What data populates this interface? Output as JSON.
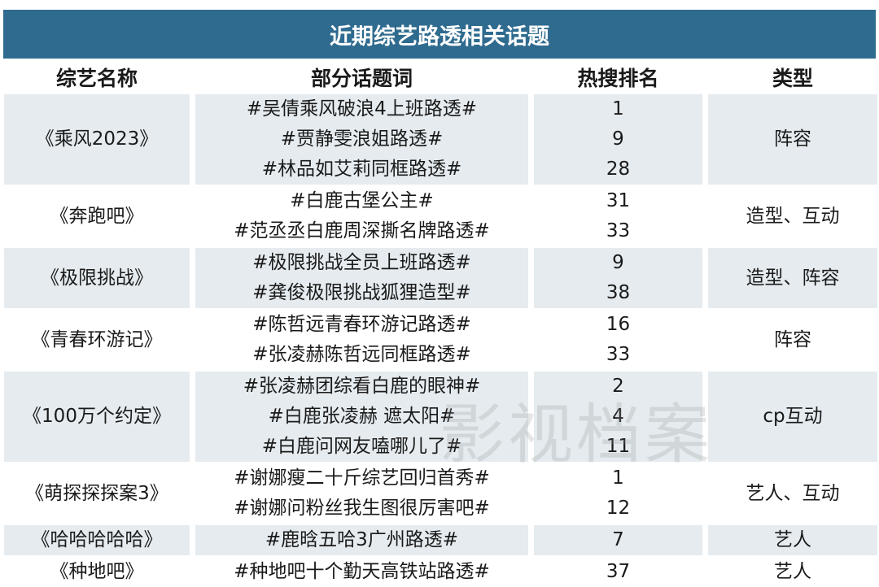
{
  "title": "近期综艺路透相关话题",
  "headers": [
    "综艺名称",
    "部分话题词",
    "热搜排名",
    "类型"
  ],
  "rows": [
    {
      "show": "《乘风2023》",
      "topics": [
        "#吴倩乘风破浪4上班路透#",
        "#贾静雯浪姐路透#",
        "#林品如艾莉同框路透#"
      ],
      "ranks": [
        "1",
        "9",
        "28"
      ],
      "type": "阵容"
    },
    {
      "show": "《奔跑吧》",
      "topics": [
        "#白鹿古堡公主#",
        "#范丞丞白鹿周深撕名牌路透#"
      ],
      "ranks": [
        "31",
        "33"
      ],
      "type": "造型、互动"
    },
    {
      "show": "《极限挑战》",
      "topics": [
        "#极限挑战全员上班路透#",
        "#龚俊极限挑战狐狸造型#"
      ],
      "ranks": [
        "9",
        "38"
      ],
      "type": "造型、阵容"
    },
    {
      "show": "《青春环游记》",
      "topics": [
        "#陈哲远青春环游记路透#",
        "#张凌赫陈哲远同框路透#"
      ],
      "ranks": [
        "16",
        "33"
      ],
      "type": "阵容"
    },
    {
      "show": "《100万个约定》",
      "topics": [
        "#张凌赫团综看白鹿的眼神#",
        "#白鹿张凌赫 遮太阳#",
        "#白鹿问网友嗑哪儿了#"
      ],
      "ranks": [
        "2",
        "4",
        "11"
      ],
      "type": "cp互动"
    },
    {
      "show": "《萌探探探案3》",
      "topics": [
        "#谢娜瘦二十斤综艺回归首秀#",
        "#谢娜问粉丝我生图很厉害吧#"
      ],
      "ranks": [
        "1",
        "12"
      ],
      "type": "艺人、互动"
    },
    {
      "show": "《哈哈哈哈哈》",
      "topics": [
        "#鹿晗五哈3广州路透#"
      ],
      "ranks": [
        "7"
      ],
      "type": "艺人"
    },
    {
      "show": "《种地吧》",
      "topics": [
        "#种地吧十个勤天高铁站路透#"
      ],
      "ranks": [
        "37"
      ],
      "type": "艺人"
    }
  ],
  "watermark": "影视档案",
  "colors": {
    "title_bg": "#2f6b8f",
    "row_shade": "#e5ebef"
  }
}
